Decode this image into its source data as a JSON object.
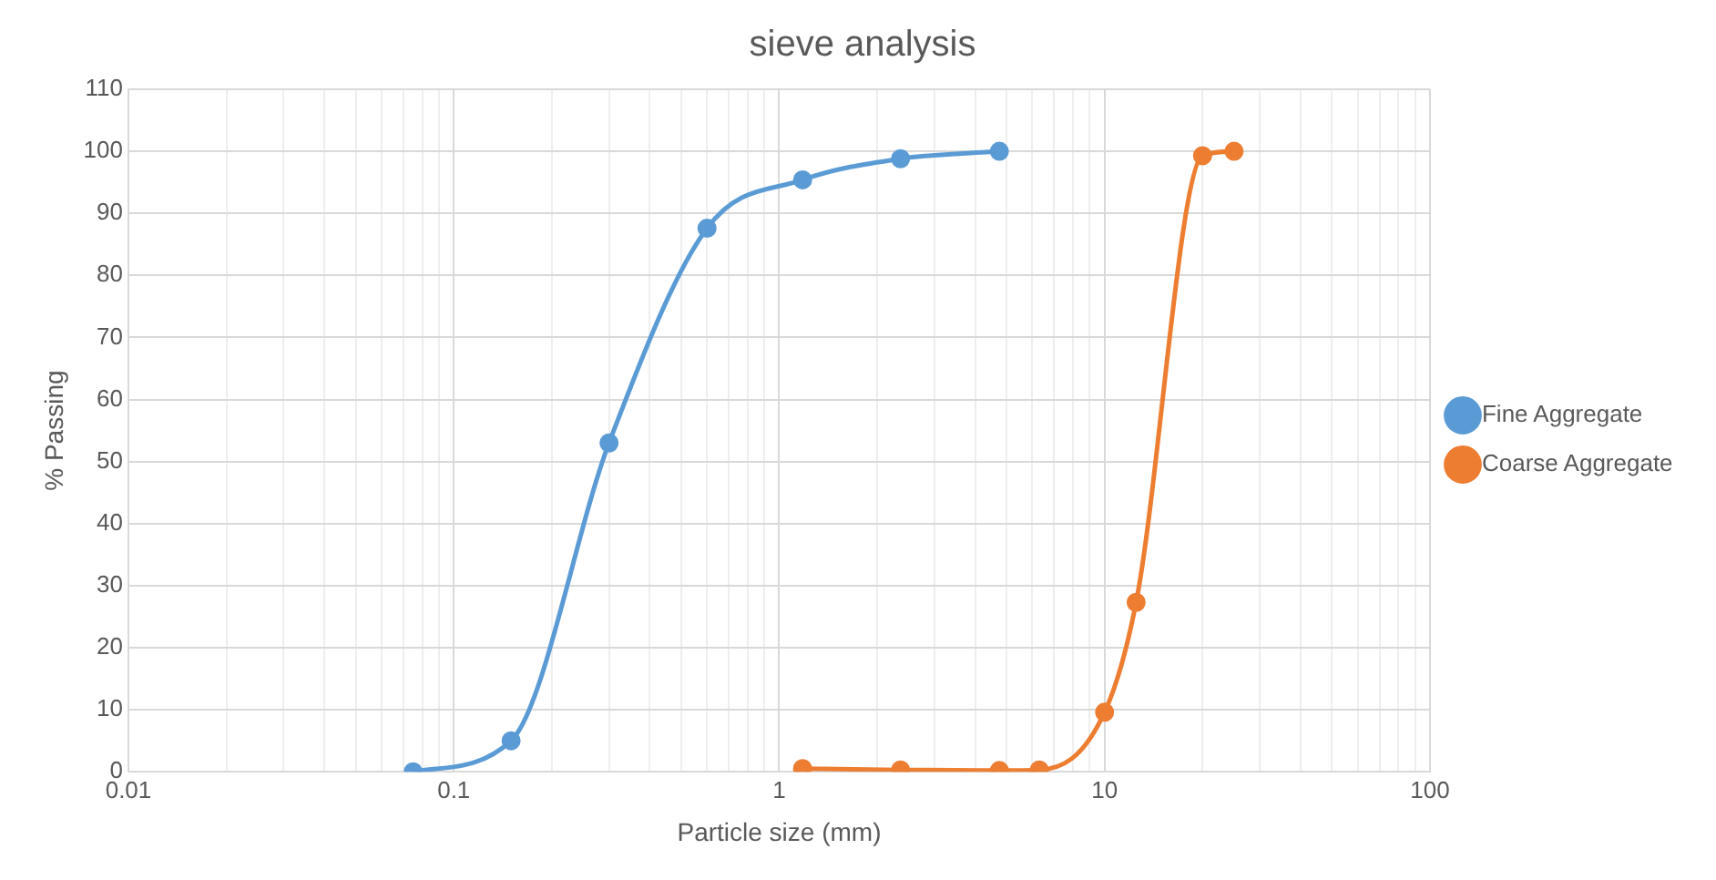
{
  "chart_data": {
    "type": "line",
    "title": "sieve analysis",
    "xlabel": "Particle size (mm)",
    "ylabel": "% Passing",
    "log": "x",
    "xlim": [
      0.01,
      100
    ],
    "xticks": [
      0.01,
      {
        "value": 0.02,
        "label": null
      },
      {
        "value": 0.03,
        "label": null
      },
      {
        "value": 0.04,
        "label": null
      },
      {
        "value": 0.05,
        "label": null
      },
      {
        "value": 0.06,
        "label": null
      },
      {
        "value": 0.07,
        "label": null
      },
      {
        "value": 0.08,
        "label": null
      },
      {
        "value": 0.09,
        "label": null
      },
      0.1,
      {
        "value": 0.2,
        "label": null
      },
      {
        "value": 0.3,
        "label": null
      },
      {
        "value": 0.4,
        "label": null
      },
      {
        "value": 0.5,
        "label": null
      },
      {
        "value": 0.6,
        "label": null
      },
      {
        "value": 0.7,
        "label": null
      },
      {
        "value": 0.8,
        "label": null
      },
      {
        "value": 0.9,
        "label": null
      },
      1,
      {
        "value": 2,
        "label": null
      },
      {
        "value": 3,
        "label": null
      },
      {
        "value": 4,
        "label": null
      },
      {
        "value": 5,
        "label": null
      },
      {
        "value": 6,
        "label": null
      },
      {
        "value": 7,
        "label": null
      },
      {
        "value": 8,
        "label": null
      },
      {
        "value": 9,
        "label": null
      },
      10,
      {
        "value": 20,
        "label": null
      },
      {
        "value": 30,
        "label": null
      },
      {
        "value": 40,
        "label": null
      },
      {
        "value": 50,
        "label": null
      },
      {
        "value": 60,
        "label": null
      },
      {
        "value": 70,
        "label": null
      },
      {
        "value": 80,
        "label": null
      },
      {
        "value": 90,
        "label": null
      },
      100
    ],
    "ylim": [
      0,
      110
    ],
    "yticks": [
      0,
      10,
      20,
      30,
      40,
      50,
      60,
      70,
      80,
      90,
      100,
      110
    ],
    "grid": true,
    "legend": "right",
    "marker": "circle",
    "line_style": "solid",
    "series": [
      {
        "name": "Fine Aggregate",
        "color": "#5b9bd5",
        "x": [
          0.075,
          0.15,
          0.3,
          0.6,
          1.18,
          2.36,
          4.75
        ],
        "values": [
          0,
          5,
          53,
          87.6,
          95.4,
          98.8,
          100
        ]
      },
      {
        "name": "Coarse Aggregate",
        "color": "#ed7d31",
        "x": [
          1.18,
          2.36,
          4.75,
          6.3,
          10,
          12.5,
          20,
          25
        ],
        "values": [
          0.5,
          0.3,
          0.2,
          0.3,
          9.6,
          27.3,
          99.3,
          100
        ]
      }
    ]
  }
}
